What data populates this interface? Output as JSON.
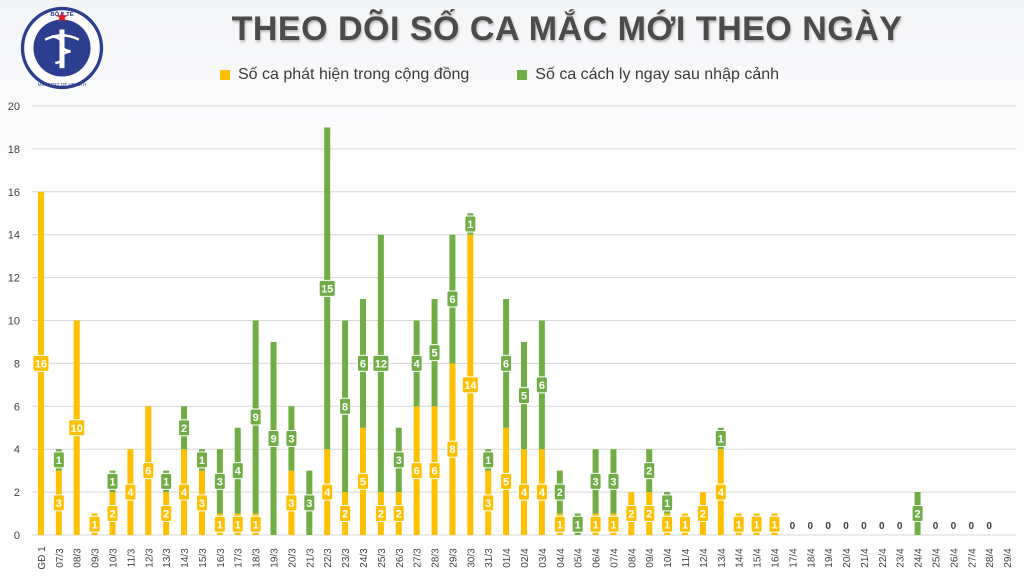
{
  "header": {
    "title": "THEO DÕI SỐ CA MẮC MỚI THEO NGÀY",
    "logo_top_text": "BỘ Y TẾ",
    "logo_bottom_text": "MINISTRY OF HEALTH"
  },
  "colors": {
    "community": "#ffc000",
    "quarantine": "#70ad47",
    "grid": "#d9d9d9",
    "axis_text": "#404040"
  },
  "chart_data": {
    "type": "bar",
    "stacked": true,
    "ylim": [
      0,
      20
    ],
    "yticks": [
      0,
      2,
      4,
      6,
      8,
      10,
      12,
      14,
      16,
      18,
      20
    ],
    "grid": true,
    "legend_position": "top",
    "categories": [
      "GĐ 1",
      "07/3",
      "08/3",
      "09/3",
      "10/3",
      "11/3",
      "12/3",
      "13/3",
      "14/3",
      "15/3",
      "16/3",
      "17/3",
      "18/3",
      "19/3",
      "20/3",
      "21/3",
      "22/3",
      "23/3",
      "24/3",
      "25/3",
      "26/3",
      "27/3",
      "28/3",
      "29/3",
      "30/3",
      "31/3",
      "01/4",
      "02/4",
      "03/4",
      "04/4",
      "05/4",
      "06/4",
      "07/4",
      "08/4",
      "09/4",
      "10/4",
      "11/4",
      "12/4",
      "13/4",
      "14/4",
      "15/4",
      "16/4",
      "17/4",
      "18/4",
      "19/4",
      "20/4",
      "21/4",
      "22/4",
      "23/4",
      "24/4",
      "25/4",
      "26/4",
      "27/4",
      "28/4",
      "29/4"
    ],
    "series": [
      {
        "name": "Số ca phát hiện trong cộng đồng",
        "color": "#ffc000",
        "values": [
          16,
          3,
          10,
          1,
          2,
          4,
          6,
          2,
          4,
          3,
          1,
          1,
          1,
          0,
          3,
          0,
          4,
          2,
          5,
          2,
          2,
          6,
          6,
          8,
          14,
          3,
          5,
          4,
          4,
          1,
          0,
          1,
          1,
          2,
          2,
          1,
          1,
          2,
          4,
          1,
          1,
          1,
          0,
          0,
          0,
          0,
          0,
          0,
          0,
          0,
          0,
          0,
          0,
          0,
          null
        ],
        "labels": [
          "16",
          "3",
          "10",
          "1",
          "2",
          "4",
          "6",
          "2",
          "4",
          "3",
          "1",
          "1",
          "1",
          "",
          "3",
          "",
          "4",
          "2",
          "5",
          "2",
          "2",
          "6",
          "6",
          "8",
          "14",
          "3",
          "5",
          "4",
          "4",
          "1",
          "",
          "1",
          "1",
          "2",
          "2",
          "1",
          "1",
          "2",
          "4",
          "1",
          "1",
          "1",
          "0",
          "0",
          "0",
          "0",
          "0",
          "0",
          "0",
          "",
          "0",
          "0",
          "0",
          "0",
          ""
        ]
      },
      {
        "name": "Số ca cách ly ngay sau nhập cảnh",
        "color": "#70ad47",
        "values": [
          0,
          1,
          0,
          0,
          1,
          0,
          0,
          1,
          2,
          1,
          3,
          4,
          9,
          9,
          3,
          3,
          15,
          8,
          6,
          12,
          3,
          4,
          5,
          6,
          1,
          1,
          6,
          5,
          6,
          2,
          1,
          3,
          3,
          0,
          2,
          1,
          0,
          0,
          1,
          0,
          0,
          0,
          0,
          0,
          0,
          0,
          0,
          0,
          0,
          2,
          0,
          0,
          0,
          0,
          null
        ],
        "labels": [
          "",
          "1",
          "",
          "",
          "1",
          "",
          "",
          "1",
          "2",
          "1",
          "3",
          "4",
          "9",
          "9",
          "3",
          "3",
          "15",
          "8",
          "6",
          "12",
          "3",
          "4",
          "5",
          "6",
          "1",
          "1",
          "6",
          "5",
          "6",
          "2",
          "1",
          "3",
          "3",
          "",
          "2",
          "1",
          "",
          "",
          "1",
          "",
          "",
          "",
          "",
          "",
          "",
          "",
          "",
          "",
          "",
          "2",
          "",
          "",
          "",
          "",
          ""
        ]
      }
    ]
  }
}
